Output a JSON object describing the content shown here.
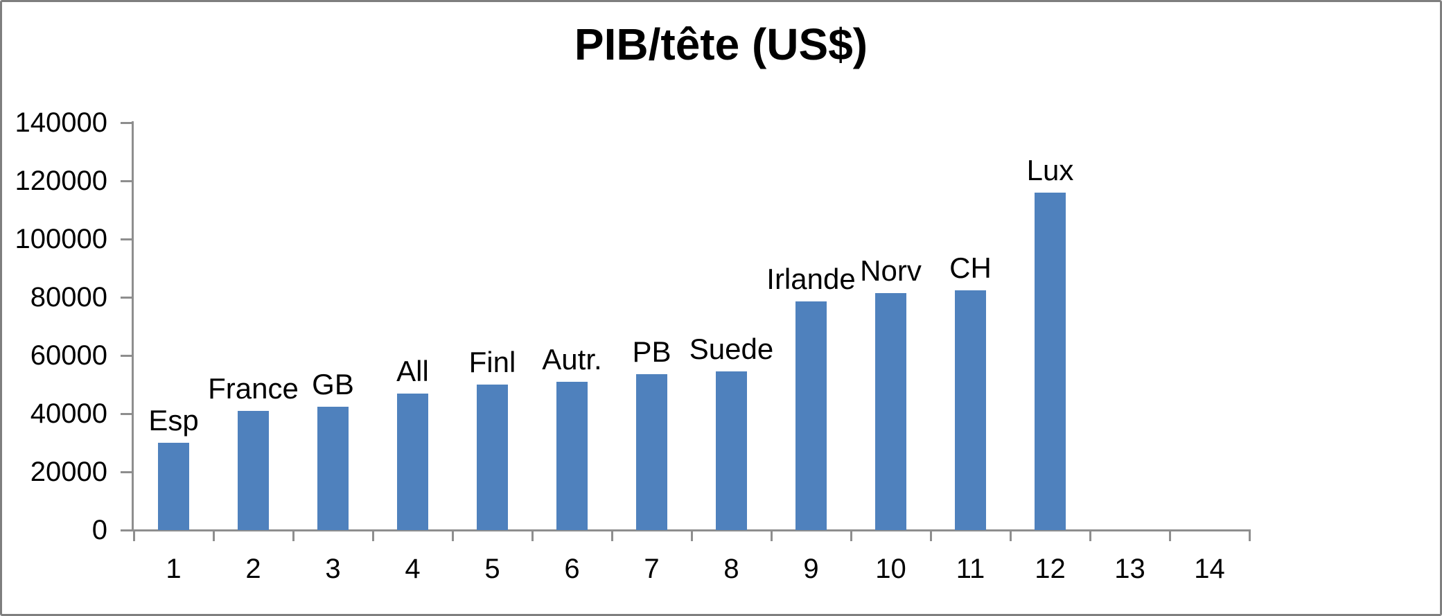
{
  "chart_data": {
    "type": "bar",
    "title": "PIB/tête (US$)",
    "categories": [
      1,
      2,
      3,
      4,
      5,
      6,
      7,
      8,
      9,
      10,
      11,
      12,
      13,
      14
    ],
    "x_tick_labels": [
      "1",
      "2",
      "3",
      "4",
      "5",
      "6",
      "7",
      "8",
      "9",
      "10",
      "11",
      "12",
      "13",
      "14"
    ],
    "series": [
      {
        "name": "PIB/tête (US$)",
        "values": [
          30000,
          41000,
          42500,
          47000,
          50000,
          51000,
          53500,
          54500,
          78500,
          81500,
          82500,
          116000,
          null,
          null
        ]
      }
    ],
    "bar_labels": [
      "Esp",
      "France",
      "GB",
      "All",
      "Finl",
      "Autr.",
      "PB",
      "Suede",
      "Irlande",
      "Norv",
      "CH",
      "Lux",
      null,
      null
    ],
    "xlabel": "",
    "ylabel": "",
    "ylim": [
      0,
      140000
    ],
    "y_ticks": [
      0,
      20000,
      40000,
      60000,
      80000,
      100000,
      120000,
      140000
    ],
    "y_tick_labels": [
      "0",
      "20000",
      "40000",
      "60000",
      "80000",
      "100000",
      "120000",
      "140000"
    ],
    "grid": false,
    "legend_position": "none",
    "bar_color": "#4f81bd",
    "axis_color": "#8e8e8e",
    "text_color": "#000000",
    "background_color": "#ffffff",
    "frame_border_color": "#7f7f7f"
  }
}
